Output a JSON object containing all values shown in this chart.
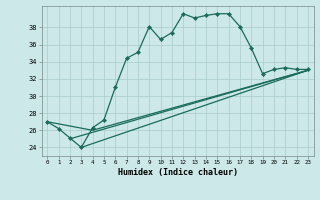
{
  "title": "",
  "xlabel": "Humidex (Indice chaleur)",
  "background_color": "#cce8e8",
  "grid_color": "#aacccc",
  "line_color": "#1a6b5a",
  "xlim": [
    -0.5,
    23.5
  ],
  "ylim": [
    23.0,
    40.5
  ],
  "yticks": [
    24,
    26,
    28,
    30,
    32,
    34,
    36,
    38
  ],
  "xticks": [
    0,
    1,
    2,
    3,
    4,
    5,
    6,
    7,
    8,
    9,
    10,
    11,
    12,
    13,
    14,
    15,
    16,
    17,
    18,
    19,
    20,
    21,
    22,
    23
  ],
  "main_x": [
    0,
    1,
    2,
    3,
    4,
    5,
    6,
    7,
    8,
    9,
    10,
    11,
    12,
    13,
    14,
    15,
    16,
    17,
    18,
    19,
    20,
    21,
    22,
    23
  ],
  "main_y": [
    27.0,
    26.2,
    25.1,
    24.0,
    26.3,
    27.2,
    31.0,
    34.4,
    35.1,
    38.1,
    36.6,
    37.4,
    39.6,
    39.1,
    39.4,
    39.6,
    39.6,
    38.1,
    35.6,
    32.6,
    33.1,
    33.3,
    33.1,
    33.1
  ],
  "line2_x": [
    0,
    4,
    23
  ],
  "line2_y": [
    27.0,
    26.0,
    33.0
  ],
  "line3_x": [
    2,
    23
  ],
  "line3_y": [
    25.0,
    33.0
  ],
  "line4_x": [
    3,
    23
  ],
  "line4_y": [
    24.0,
    33.0
  ]
}
